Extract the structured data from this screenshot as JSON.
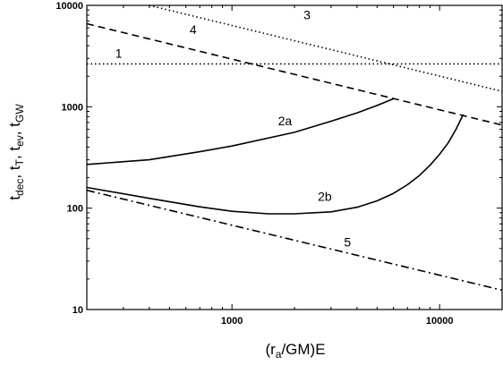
{
  "chart_data": {
    "type": "line",
    "xlabel": {
      "pre": "(r",
      "sub": "a",
      "post": "/GM)E"
    },
    "ylabel": [
      {
        "base": "t",
        "sub": "dec"
      },
      {
        "base": "t",
        "sub": "T"
      },
      {
        "base": "t",
        "sub": "ev"
      },
      {
        "base": "t",
        "sub": "GW"
      }
    ],
    "xscale": "log",
    "yscale": "log",
    "xlim": [
      200,
      20000
    ],
    "ylim": [
      10,
      10000
    ],
    "xticks": [
      1000,
      10000
    ],
    "xtick_labels": [
      "1000",
      "10000"
    ],
    "yticks": [
      10,
      100,
      1000,
      10000
    ],
    "ytick_labels": [
      "10",
      "100",
      "1000",
      "10000"
    ],
    "grid": false,
    "legend": "none",
    "color": "#000000",
    "series": [
      {
        "label": "1",
        "style": "dotted",
        "x": [
          200,
          20000
        ],
        "y": [
          2650,
          2650
        ]
      },
      {
        "label": "2a",
        "style": "solid",
        "x": [
          200,
          400,
          700,
          1000,
          2000,
          3000,
          4000,
          5000,
          6000
        ],
        "y": [
          270,
          300,
          360,
          410,
          560,
          720,
          870,
          1030,
          1200
        ]
      },
      {
        "label": "2b",
        "style": "solid",
        "x": [
          200,
          400,
          700,
          1000,
          1500,
          2000,
          3000,
          4000,
          5000,
          6000,
          7000,
          8000,
          9000,
          10000,
          11000,
          12000,
          13000
        ],
        "y": [
          160,
          125,
          103,
          93,
          88,
          88,
          92,
          102,
          118,
          140,
          170,
          210,
          265,
          340,
          440,
          600,
          840
        ]
      },
      {
        "label": "3",
        "style": "dotted",
        "x": [
          400,
          20000
        ],
        "y": [
          10000,
          1420
        ]
      },
      {
        "label": "4",
        "style": "dashed",
        "x": [
          200,
          20000
        ],
        "y": [
          6600,
          660
        ]
      },
      {
        "label": "5",
        "style": "dashdot",
        "x": [
          200,
          20000
        ],
        "y": [
          150,
          15.5
        ]
      }
    ],
    "annotations": [
      {
        "text": "1",
        "x": 285,
        "y": 3050
      },
      {
        "text": "2a",
        "x": 1800,
        "y": 660
      },
      {
        "text": "2b",
        "x": 2800,
        "y": 118
      },
      {
        "text": "3",
        "x": 2300,
        "y": 7300
      },
      {
        "text": "4",
        "x": 650,
        "y": 5200
      },
      {
        "text": "5",
        "x": 3600,
        "y": 42
      }
    ]
  }
}
